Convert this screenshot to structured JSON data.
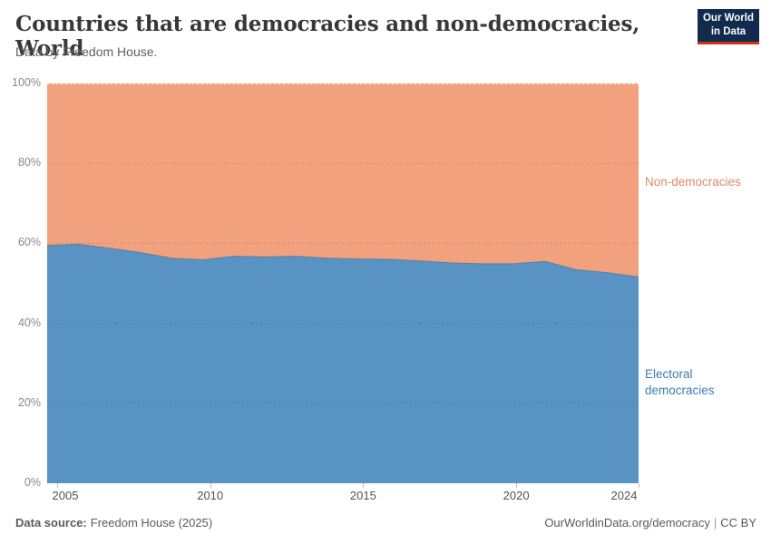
{
  "header": {
    "title": "Countries that are democracies and non-democracies, World",
    "subtitle": "Data by Freedom House.",
    "logo": {
      "line1": "Our World",
      "line2": "in Data",
      "bg_color": "#102B4E",
      "accent_color": "#D3301F"
    }
  },
  "chart_data": {
    "type": "area",
    "stacked": true,
    "relative": true,
    "unit": "%",
    "title": "Countries that are democracies and non-democracies, World",
    "x": [
      2005,
      2006,
      2007,
      2008,
      2009,
      2010,
      2011,
      2012,
      2013,
      2014,
      2015,
      2016,
      2017,
      2018,
      2019,
      2020,
      2021,
      2022,
      2023,
      2024
    ],
    "series": [
      {
        "name": "Electoral democracies",
        "color": "#5893C4",
        "label_color": "#3C7DB4",
        "values": [
          59.5,
          59.8,
          58.8,
          57.7,
          56.3,
          55.9,
          56.8,
          56.6,
          56.8,
          56.3,
          56.1,
          56.0,
          55.6,
          55.1,
          54.9,
          54.9,
          55.5,
          53.4,
          52.7,
          51.6
        ]
      },
      {
        "name": "Non-democracies",
        "color": "#F2A17E",
        "label_color": "#DF8A66",
        "values": [
          40.5,
          40.2,
          41.2,
          42.3,
          43.7,
          44.1,
          43.2,
          43.4,
          43.2,
          43.7,
          43.9,
          44.0,
          44.4,
          44.9,
          45.1,
          45.1,
          44.5,
          46.6,
          47.3,
          48.4
        ]
      }
    ],
    "ylim": [
      0,
      100
    ],
    "y_ticks": [
      {
        "value": 0,
        "label": "0%"
      },
      {
        "value": 20,
        "label": "20%"
      },
      {
        "value": 40,
        "label": "40%"
      },
      {
        "value": 60,
        "label": "60%"
      },
      {
        "value": 80,
        "label": "80%"
      },
      {
        "value": 100,
        "label": "100%"
      }
    ],
    "x_ticks": [
      {
        "value": 2005,
        "label": "2005"
      },
      {
        "value": 2010,
        "label": "2010"
      },
      {
        "value": 2015,
        "label": "2015"
      },
      {
        "value": 2020,
        "label": "2020"
      },
      {
        "value": 2024,
        "label": "2024"
      }
    ],
    "grid": "dashed",
    "legend_position": "right"
  },
  "footer": {
    "source_label": "Data source:",
    "source_value": "Freedom House (2025)",
    "link": "OurWorldinData.org/democracy",
    "separator": "|",
    "license": "CC BY"
  }
}
